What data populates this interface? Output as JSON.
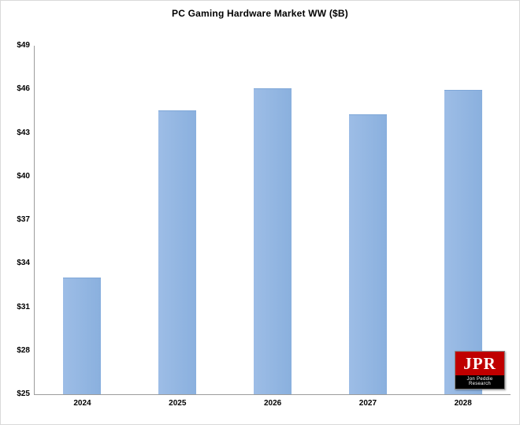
{
  "chart_data": {
    "type": "bar",
    "title": "PC Gaming  Hardware Market WW ($B)",
    "categories": [
      "2024",
      "2025",
      "2026",
      "2027",
      "2028"
    ],
    "values": [
      33,
      44.5,
      46,
      44.2,
      45.9
    ],
    "xlabel": "",
    "ylabel": "",
    "ylim": [
      25,
      49
    ],
    "y_ticks": [
      25,
      28,
      31,
      34,
      37,
      40,
      43,
      46,
      49
    ],
    "y_tick_prefix": "$",
    "bar_color": "#8EB4E2",
    "grid": false,
    "legend_position": "none"
  },
  "logo": {
    "text": "JPR",
    "subtext": "Jon Peddie Research",
    "bg_color": "#C00000"
  }
}
